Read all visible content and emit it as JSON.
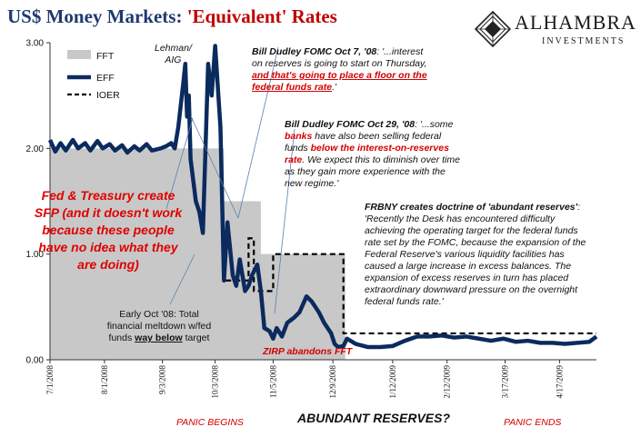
{
  "title": {
    "prefix": "US$ Money Markets: ",
    "highlight": "'Equivalent' Rates"
  },
  "logo": {
    "name": "ALHAMBRA",
    "sub": "INVESTMENTS"
  },
  "colors": {
    "title": "#1f3a6e",
    "eff": "#0b2a5e",
    "fft": "#c8c8c8",
    "ioer": "#000000",
    "annotation_red": "#d40000"
  },
  "chart_data": {
    "type": "line",
    "xlabel": "",
    "ylabel": "",
    "ylim": [
      0,
      3
    ],
    "xlim": [
      "2008-07-01",
      "2009-05-08"
    ],
    "y_ticks": [
      "0.00",
      "1.00",
      "2.00",
      "3.00"
    ],
    "x_ticks": [
      "7/1/2008",
      "8/1/2008",
      "9/3/2008",
      "10/3/2008",
      "11/5/2008",
      "12/9/2008",
      "1/12/2009",
      "2/12/2009",
      "3/17/2009",
      "4/17/2009"
    ],
    "grid": false,
    "legend_position": "top-left",
    "series": [
      {
        "name": "FFT",
        "style": "area",
        "x": [
          "2008-07-01",
          "2008-10-08",
          "2008-10-08",
          "2008-10-29",
          "2008-10-29",
          "2008-12-16",
          "2008-12-16",
          "2009-05-08"
        ],
        "values": [
          2.0,
          2.0,
          1.5,
          1.5,
          1.0,
          1.0,
          0.0,
          0.0
        ]
      },
      {
        "name": "EFF",
        "style": "line",
        "x": [
          "2008-07-01",
          "2008-07-04",
          "2008-07-07",
          "2008-07-10",
          "2008-07-14",
          "2008-07-17",
          "2008-07-21",
          "2008-07-24",
          "2008-07-28",
          "2008-07-31",
          "2008-08-04",
          "2008-08-07",
          "2008-08-11",
          "2008-08-14",
          "2008-08-18",
          "2008-08-21",
          "2008-08-25",
          "2008-08-28",
          "2008-09-02",
          "2008-09-05",
          "2008-09-08",
          "2008-09-10",
          "2008-09-12",
          "2008-09-15",
          "2008-09-16",
          "2008-09-17",
          "2008-09-18",
          "2008-09-19",
          "2008-09-22",
          "2008-09-24",
          "2008-09-26",
          "2008-09-29",
          "2008-10-01",
          "2008-10-03",
          "2008-10-06",
          "2008-10-08",
          "2008-10-10",
          "2008-10-13",
          "2008-10-15",
          "2008-10-17",
          "2008-10-20",
          "2008-10-22",
          "2008-10-24",
          "2008-10-27",
          "2008-10-29",
          "2008-10-31",
          "2008-11-03",
          "2008-11-05",
          "2008-11-07",
          "2008-11-10",
          "2008-11-13",
          "2008-11-17",
          "2008-11-20",
          "2008-11-24",
          "2008-11-27",
          "2008-12-01",
          "2008-12-04",
          "2008-12-08",
          "2008-12-10",
          "2008-12-12",
          "2008-12-15",
          "2008-12-17",
          "2008-12-22",
          "2008-12-29",
          "2009-01-05",
          "2009-01-12",
          "2009-01-19",
          "2009-01-26",
          "2009-02-02",
          "2009-02-09",
          "2009-02-16",
          "2009-02-23",
          "2009-03-02",
          "2009-03-09",
          "2009-03-16",
          "2009-03-23",
          "2009-03-30",
          "2009-04-06",
          "2009-04-13",
          "2009-04-20",
          "2009-04-27",
          "2009-05-04",
          "2009-05-08"
        ],
        "values": [
          2.08,
          1.97,
          2.05,
          1.98,
          2.08,
          2.0,
          2.05,
          1.98,
          2.07,
          2.0,
          2.04,
          1.98,
          2.03,
          1.96,
          2.02,
          1.98,
          2.04,
          1.98,
          2.0,
          2.02,
          2.05,
          2.0,
          2.2,
          2.64,
          2.8,
          2.3,
          2.5,
          1.9,
          1.5,
          1.4,
          1.2,
          2.8,
          2.5,
          2.97,
          2.2,
          0.75,
          1.3,
          0.8,
          0.7,
          0.95,
          0.65,
          0.7,
          0.8,
          0.9,
          0.65,
          0.3,
          0.27,
          0.2,
          0.3,
          0.22,
          0.35,
          0.4,
          0.45,
          0.6,
          0.55,
          0.45,
          0.35,
          0.25,
          0.15,
          0.12,
          0.13,
          0.2,
          0.15,
          0.12,
          0.12,
          0.13,
          0.18,
          0.22,
          0.22,
          0.23,
          0.21,
          0.22,
          0.2,
          0.18,
          0.2,
          0.17,
          0.18,
          0.16,
          0.16,
          0.15,
          0.16,
          0.17,
          0.22
        ]
      },
      {
        "name": "IOER",
        "style": "dashed",
        "x": [
          "2008-10-09",
          "2008-10-22",
          "2008-10-22",
          "2008-10-25",
          "2008-10-25",
          "2008-10-29",
          "2008-10-29",
          "2008-11-05",
          "2008-11-05",
          "2008-11-06",
          "2008-11-06",
          "2008-12-15",
          "2008-12-15",
          "2009-05-08"
        ],
        "values": [
          0.75,
          0.75,
          1.15,
          1.15,
          0.65,
          0.65,
          0.65,
          0.65,
          1.0,
          1.0,
          1.0,
          1.0,
          0.25,
          0.25
        ]
      }
    ]
  },
  "annotations": {
    "lehman": [
      "Lehman/",
      "AIG"
    ],
    "dudley_oct7": {
      "head": "Bill Dudley FOMC Oct 7, '08",
      "l1": ": '...interest",
      "l2": "on reserves is going to start on Thursday,",
      "red1": "and that's going to place a floor on the",
      "red2": "federal funds rate",
      "tail": ".'"
    },
    "dudley_oct29": {
      "head": "Bill Dudley FOMC Oct 29, '08",
      "t1": ": '...some",
      "red_a": "banks",
      "t2": " have also been selling federal",
      "t3": "funds ",
      "red_b": "below the interest-on-reserves",
      "red_c": "rate",
      "t4": ". We expect this to diminish over time",
      "t5": "as they gain more experience with the",
      "t6": "new regime.'"
    },
    "frbny": {
      "head": "FRBNY creates doctrine of 'abundant reserves'",
      "colon": ":",
      "lines": [
        "'Recently the Desk has encountered difficulty",
        "achieving the operating target for the federal funds",
        "rate set by the FOMC, because the expansion of the",
        "Federal Reserve's various liquidity facilities has",
        "caused a large increase in excess balances. The",
        "expansion of excess reserves in turn has placed",
        "extraordinary downward pressure on the overnight",
        "federal funds rate.'"
      ]
    },
    "fed_treasury": [
      "Fed & Treasury create",
      "SFP (and it doesn't work",
      "because these people",
      "have no idea what they",
      "are doing)"
    ],
    "early_oct": {
      "l1": "Early Oct '08: Total",
      "l2": "financial meltdown w/fed",
      "l3a": "funds ",
      "l3b": "way below",
      "l3c": " target"
    },
    "zirp": "ZIRP abandons  FFT"
  },
  "bottom_labels": {
    "left": "PANIC BEGINS",
    "center": "ABUNDANT RESERVES?",
    "right": "PANIC ENDS"
  }
}
